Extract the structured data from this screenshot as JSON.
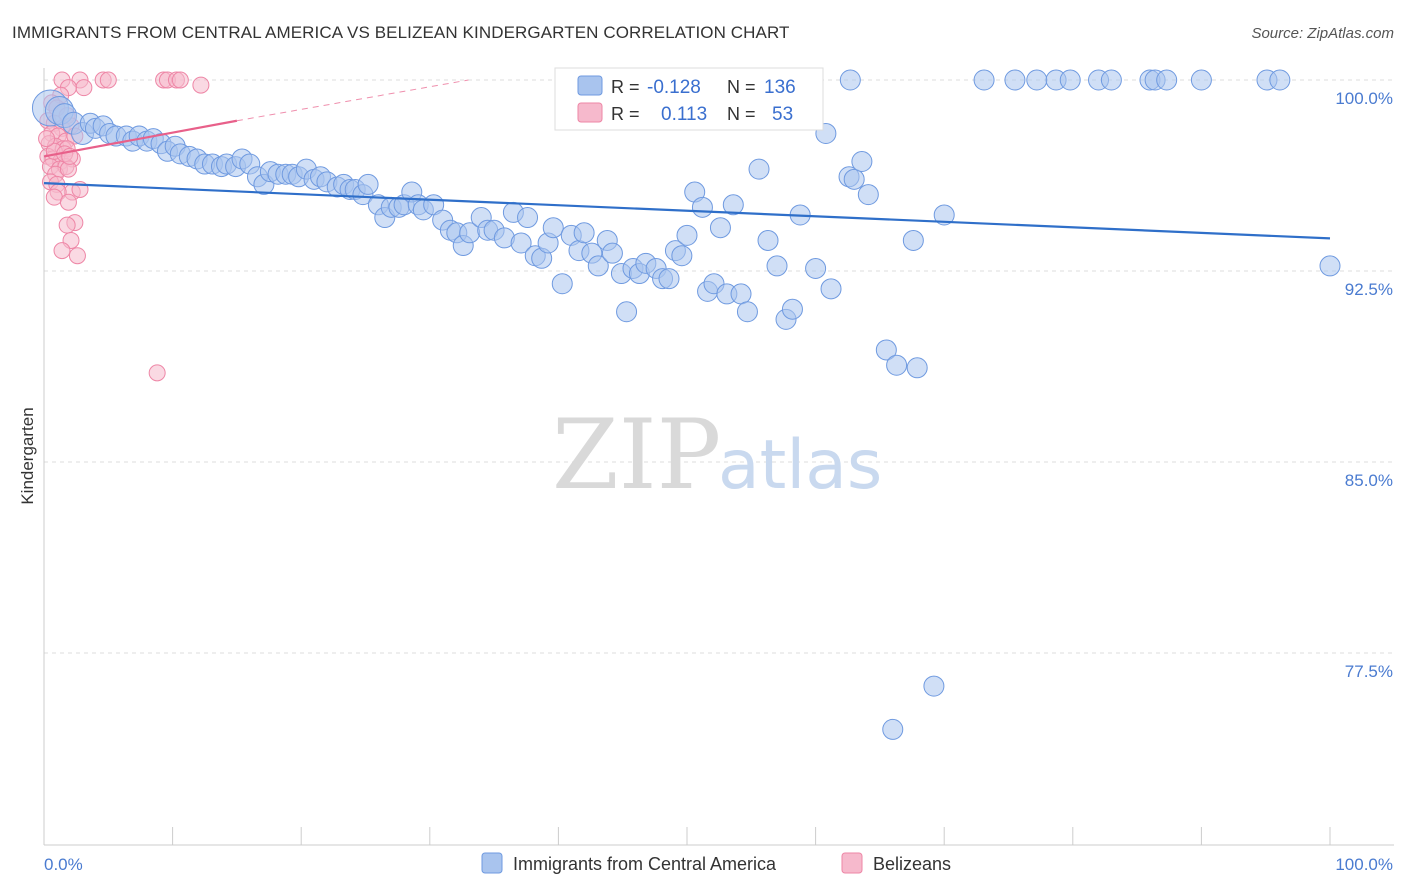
{
  "header": {
    "title": "IMMIGRANTS FROM CENTRAL AMERICA VS BELIZEAN KINDERGARTEN CORRELATION CHART",
    "source": "Source: ZipAtlas.com"
  },
  "watermark": {
    "zip": "ZIP",
    "atlas": "atlas"
  },
  "stats": {
    "r_label": "R =",
    "n_label": "N =",
    "blue": {
      "r": "-0.128",
      "n": "136"
    },
    "pink": {
      "r": "0.113",
      "n": "53"
    }
  },
  "legend": {
    "blue_label": "Immigrants from Central America",
    "pink_label": "Belizeans"
  },
  "colors": {
    "blue_fill": "#a9c4ee",
    "blue_stroke": "#6f9ae0",
    "blue_line": "#2f6fc9",
    "pink_fill": "#f6b9cc",
    "pink_stroke": "#ee86a6",
    "pink_line": "#e8608a",
    "tick_text": "#4a7bd0",
    "grid": "#dddddd"
  },
  "chart_data": {
    "type": "scatter",
    "title": "IMMIGRANTS FROM CENTRAL AMERICA VS BELIZEAN KINDERGARTEN CORRELATION CHART",
    "xlabel": "",
    "ylabel": "Kindergarten",
    "xlim": [
      0,
      100
    ],
    "ylim": [
      70.9,
      100.9
    ],
    "y_ticks": [
      100.0,
      92.5,
      85.0,
      77.5
    ],
    "y_tick_labels": [
      "100.0%",
      "92.5%",
      "85.0%",
      "77.5%"
    ],
    "x_tick_labels": [
      "0.0%",
      "100.0%"
    ],
    "x_tick_labels_pos": [
      0,
      100
    ],
    "grid": true,
    "series": [
      {
        "name": "Immigrants from Central America",
        "color": "#a9c4ee",
        "r": -0.128,
        "n": 136,
        "trend": {
          "x": [
            0,
            100
          ],
          "y": [
            95.95,
            93.78
          ]
        },
        "points": [
          [
            0.5,
            98.9,
            18
          ],
          [
            1.2,
            98.8,
            14
          ],
          [
            1.6,
            98.6,
            12
          ],
          [
            2.3,
            98.3,
            11
          ],
          [
            3,
            97.9,
            11
          ],
          [
            3.6,
            98.3,
            10
          ],
          [
            4,
            98.1,
            10
          ],
          [
            4.6,
            98.2,
            10
          ],
          [
            5.1,
            97.9,
            10
          ],
          [
            5.6,
            97.8,
            10
          ],
          [
            6.4,
            97.8,
            10
          ],
          [
            6.9,
            97.6,
            10
          ],
          [
            7.4,
            97.8,
            10
          ],
          [
            8,
            97.6,
            10
          ],
          [
            8.5,
            97.7,
            10
          ],
          [
            9.1,
            97.5,
            10
          ],
          [
            9.6,
            97.2,
            10
          ],
          [
            10.2,
            97.4,
            10
          ],
          [
            10.6,
            97.1,
            10
          ],
          [
            11.3,
            97.0,
            10
          ],
          [
            11.9,
            96.9,
            10
          ],
          [
            12.5,
            96.7,
            10
          ],
          [
            13.1,
            96.7,
            10
          ],
          [
            13.8,
            96.6,
            10
          ],
          [
            14.2,
            96.7,
            10
          ],
          [
            14.9,
            96.6,
            10
          ],
          [
            15.4,
            96.9,
            10
          ],
          [
            16.0,
            96.7,
            10
          ],
          [
            16.6,
            96.2,
            10
          ],
          [
            17.1,
            95.9,
            10
          ],
          [
            17.6,
            96.4,
            10
          ],
          [
            18.2,
            96.3,
            10
          ],
          [
            18.8,
            96.3,
            10
          ],
          [
            19.3,
            96.3,
            10
          ],
          [
            19.8,
            96.2,
            10
          ],
          [
            20.4,
            96.5,
            10
          ],
          [
            21.0,
            96.1,
            10
          ],
          [
            21.5,
            96.2,
            10
          ],
          [
            22.0,
            96.0,
            10
          ],
          [
            22.8,
            95.8,
            10
          ],
          [
            23.3,
            95.9,
            10
          ],
          [
            23.8,
            95.7,
            10
          ],
          [
            24.2,
            95.7,
            10
          ],
          [
            24.8,
            95.5,
            10
          ],
          [
            25.2,
            95.9,
            10
          ],
          [
            26.0,
            95.1,
            10
          ],
          [
            26.5,
            94.6,
            10
          ],
          [
            27.0,
            95.0,
            10
          ],
          [
            27.6,
            95.0,
            10
          ],
          [
            28.0,
            95.1,
            10
          ],
          [
            28.6,
            95.6,
            10
          ],
          [
            29.1,
            95.1,
            10
          ],
          [
            29.5,
            94.9,
            10
          ],
          [
            30.3,
            95.1,
            10
          ],
          [
            31.0,
            94.5,
            10
          ],
          [
            31.6,
            94.1,
            10
          ],
          [
            32.1,
            94.0,
            10
          ],
          [
            32.6,
            93.5,
            10
          ],
          [
            33.1,
            94.0,
            10
          ],
          [
            34.0,
            94.6,
            10
          ],
          [
            34.5,
            94.1,
            10
          ],
          [
            35.0,
            94.1,
            10
          ],
          [
            35.8,
            93.8,
            10
          ],
          [
            36.5,
            94.8,
            10
          ],
          [
            37.1,
            93.6,
            10
          ],
          [
            37.6,
            94.6,
            10
          ],
          [
            38.2,
            93.1,
            10
          ],
          [
            38.7,
            93.0,
            10
          ],
          [
            39.2,
            93.6,
            10
          ],
          [
            39.6,
            94.2,
            10
          ],
          [
            40.3,
            92.0,
            10
          ],
          [
            41.0,
            93.9,
            10
          ],
          [
            41.6,
            93.3,
            10
          ],
          [
            42.0,
            94.0,
            10
          ],
          [
            42.6,
            93.2,
            10
          ],
          [
            43.1,
            92.7,
            10
          ],
          [
            43.8,
            93.7,
            10
          ],
          [
            44.2,
            93.2,
            10
          ],
          [
            44.9,
            92.4,
            10
          ],
          [
            45.3,
            90.9,
            10
          ],
          [
            45.8,
            92.6,
            10
          ],
          [
            46.3,
            92.4,
            10
          ],
          [
            46.8,
            92.8,
            10
          ],
          [
            47.6,
            92.6,
            10
          ],
          [
            48.1,
            92.2,
            10
          ],
          [
            48.6,
            92.2,
            10
          ],
          [
            49.1,
            93.3,
            10
          ],
          [
            49.6,
            93.1,
            10
          ],
          [
            50.0,
            93.9,
            10
          ],
          [
            50.6,
            95.6,
            10
          ],
          [
            51.2,
            95.0,
            10
          ],
          [
            51.6,
            91.7,
            10
          ],
          [
            52.1,
            92.0,
            10
          ],
          [
            52.6,
            94.2,
            10
          ],
          [
            53.1,
            91.6,
            10
          ],
          [
            53.6,
            95.1,
            10
          ],
          [
            54.2,
            91.6,
            10
          ],
          [
            54.7,
            90.9,
            10
          ],
          [
            55.6,
            96.5,
            10
          ],
          [
            56.3,
            93.7,
            10
          ],
          [
            57.0,
            92.7,
            10
          ],
          [
            57.7,
            90.6,
            10
          ],
          [
            58.2,
            91.0,
            10
          ],
          [
            58.8,
            94.7,
            10
          ],
          [
            60.0,
            92.6,
            10
          ],
          [
            61.2,
            91.8,
            10
          ],
          [
            62.6,
            96.2,
            10
          ],
          [
            63.0,
            96.1,
            10
          ],
          [
            63.6,
            96.8,
            10
          ],
          [
            64.1,
            95.5,
            10
          ],
          [
            65.5,
            89.4,
            10
          ],
          [
            66.3,
            88.8,
            10
          ],
          [
            67.6,
            93.7,
            10
          ],
          [
            67.9,
            88.7,
            10
          ],
          [
            70.0,
            94.7,
            10
          ],
          [
            73.1,
            100.0,
            10
          ],
          [
            75.5,
            100.0,
            10
          ],
          [
            77.2,
            100.0,
            10
          ],
          [
            78.7,
            100.0,
            10
          ],
          [
            79.8,
            100.0,
            10
          ],
          [
            82.0,
            100.0,
            10
          ],
          [
            83.0,
            100.0,
            10
          ],
          [
            86.0,
            100.0,
            10
          ],
          [
            86.4,
            100.0,
            10
          ],
          [
            87.3,
            100.0,
            10
          ],
          [
            90.0,
            100.0,
            10
          ],
          [
            95.1,
            100.0,
            10
          ],
          [
            96.1,
            100.0,
            10
          ],
          [
            100.0,
            92.7,
            10
          ],
          [
            58.5,
            99.3,
            10
          ],
          [
            62.7,
            100.0,
            10
          ],
          [
            60.8,
            97.9,
            10
          ],
          [
            51.9,
            100.0,
            10
          ],
          [
            69.2,
            76.2,
            10
          ],
          [
            66.0,
            74.5,
            10
          ]
        ]
      },
      {
        "name": "Belizeans",
        "color": "#f6b9cc",
        "r": 0.113,
        "n": 53,
        "trend": {
          "x": [
            0,
            15
          ],
          "y": [
            97.0,
            98.4
          ]
        },
        "trend_ext": {
          "x": [
            15,
            33
          ],
          "y": [
            98.4,
            100.0
          ]
        },
        "points": [
          [
            1.4,
            100.0,
            8
          ],
          [
            2.8,
            100.0,
            8
          ],
          [
            3.1,
            99.7,
            8
          ],
          [
            4.6,
            100.0,
            8
          ],
          [
            5.0,
            100.0,
            8
          ],
          [
            9.3,
            100.0,
            8
          ],
          [
            9.6,
            100.0,
            8
          ],
          [
            10.3,
            100.0,
            8
          ],
          [
            10.6,
            100.0,
            8
          ],
          [
            12.2,
            99.8,
            8
          ],
          [
            1.9,
            99.7,
            8
          ],
          [
            1.3,
            99.4,
            8
          ],
          [
            0.6,
            99.1,
            8
          ],
          [
            1.0,
            98.9,
            8
          ],
          [
            1.8,
            98.6,
            8
          ],
          [
            0.3,
            98.4,
            8
          ],
          [
            0.8,
            98.3,
            8
          ],
          [
            1.4,
            98.1,
            8
          ],
          [
            2.1,
            98.2,
            8
          ],
          [
            0.6,
            97.9,
            8
          ],
          [
            1.1,
            97.8,
            8
          ],
          [
            1.7,
            97.6,
            8
          ],
          [
            2.4,
            97.8,
            8
          ],
          [
            0.4,
            97.5,
            8
          ],
          [
            0.9,
            97.4,
            8
          ],
          [
            1.5,
            97.3,
            8
          ],
          [
            1.8,
            97.3,
            8
          ],
          [
            0.3,
            97.0,
            8
          ],
          [
            0.7,
            96.9,
            8
          ],
          [
            1.3,
            96.8,
            8
          ],
          [
            2.2,
            96.9,
            8
          ],
          [
            0.5,
            96.6,
            8
          ],
          [
            1.2,
            96.5,
            8
          ],
          [
            1.7,
            96.6,
            8
          ],
          [
            0.9,
            96.3,
            8
          ],
          [
            1.9,
            96.5,
            8
          ],
          [
            0.5,
            96.0,
            8
          ],
          [
            1.0,
            95.9,
            8
          ],
          [
            2.2,
            95.6,
            8
          ],
          [
            1.1,
            95.6,
            8
          ],
          [
            0.8,
            95.4,
            8
          ],
          [
            2.8,
            95.7,
            8
          ],
          [
            1.9,
            95.2,
            8
          ],
          [
            2.4,
            94.4,
            8
          ],
          [
            1.8,
            94.3,
            8
          ],
          [
            2.1,
            93.7,
            8
          ],
          [
            1.4,
            93.3,
            8
          ],
          [
            2.6,
            93.1,
            8
          ],
          [
            8.8,
            88.5,
            8
          ],
          [
            0.8,
            97.2,
            8
          ],
          [
            1.6,
            97.1,
            8
          ],
          [
            0.2,
            97.7,
            8
          ],
          [
            2.0,
            97.0,
            8
          ]
        ]
      }
    ]
  }
}
